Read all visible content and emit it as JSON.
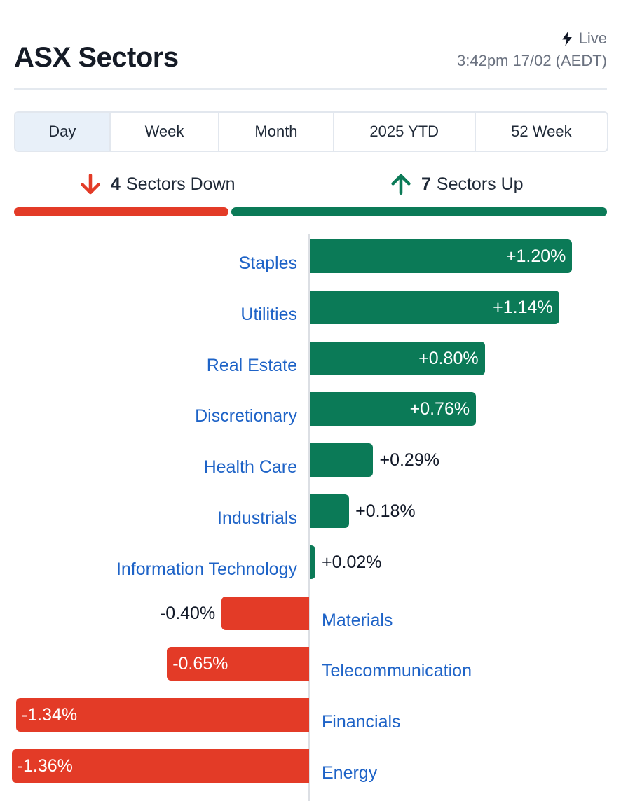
{
  "header": {
    "title": "ASX Sectors",
    "live_label": "Live",
    "timestamp": "3:42pm 17/02 (AEDT)"
  },
  "tabs": [
    {
      "label": "Day",
      "active": true
    },
    {
      "label": "Week",
      "active": false
    },
    {
      "label": "Month",
      "active": false
    },
    {
      "label": "2025 YTD",
      "active": false
    },
    {
      "label": "52 Week",
      "active": false
    }
  ],
  "summary": {
    "down_count": "4",
    "down_label": "Sectors Down",
    "up_count": "7",
    "up_label": "Sectors Up"
  },
  "colors": {
    "positive": "#0b7a57",
    "negative": "#e33b27",
    "link": "#1e63c7",
    "active_tab": "#e8f0f9"
  },
  "icons": {
    "live": "lightning-bolt-icon",
    "down": "arrow-down-icon",
    "up": "arrow-up-icon"
  },
  "chart_data": {
    "type": "bar",
    "orientation": "horizontal",
    "categories": [
      "Staples",
      "Utilities",
      "Real Estate",
      "Discretionary",
      "Health Care",
      "Industrials",
      "Information Technology",
      "Materials",
      "Telecommunication",
      "Financials",
      "Energy"
    ],
    "values": [
      1.2,
      1.14,
      0.8,
      0.76,
      0.29,
      0.18,
      0.02,
      -0.4,
      -0.65,
      -1.34,
      -1.36
    ],
    "labels": [
      "+1.20%",
      "+1.14%",
      "+0.80%",
      "+0.76%",
      "+0.29%",
      "+0.18%",
      "+0.02%",
      "-0.40%",
      "-0.65%",
      "-1.34%",
      "-1.36%"
    ],
    "unit": "%",
    "xlim": [
      -1.36,
      1.2
    ]
  }
}
